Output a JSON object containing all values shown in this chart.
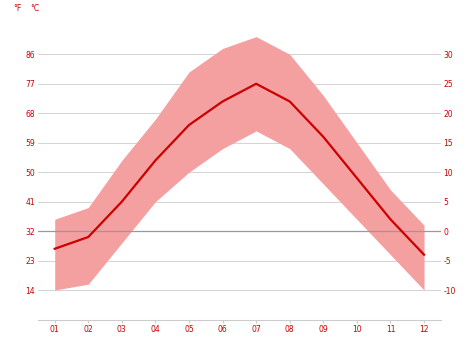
{
  "months": [
    1,
    2,
    3,
    4,
    5,
    6,
    7,
    8,
    9,
    10,
    11,
    12
  ],
  "month_labels": [
    "01",
    "02",
    "03",
    "04",
    "05",
    "06",
    "07",
    "08",
    "09",
    "10",
    "11",
    "12"
  ],
  "avg_temp": [
    -3,
    -1,
    5,
    12,
    18,
    22,
    25,
    22,
    16,
    9,
    2,
    -4
  ],
  "max_temp": [
    2,
    4,
    12,
    19,
    27,
    31,
    33,
    30,
    23,
    15,
    7,
    1
  ],
  "min_temp": [
    -10,
    -9,
    -2,
    5,
    10,
    14,
    17,
    14,
    8,
    2,
    -4,
    -10
  ],
  "line_color": "#cc0000",
  "band_color": "#f5a0a0",
  "zero_line_color": "#999999",
  "bg_color": "#ffffff",
  "grid_color": "#cccccc",
  "ylim_min": -15,
  "ylim_max": 35,
  "yticks_c": [
    30,
    25,
    20,
    15,
    10,
    5,
    0,
    -5,
    -10
  ],
  "yticks_f": [
    86,
    77,
    68,
    59,
    50,
    41,
    32,
    23,
    14
  ],
  "ylabel_f": "°F",
  "ylabel_c": "°C",
  "tick_color": "#cc0000",
  "tick_fontsize": 5.5,
  "unit_fontsize": 5.5,
  "line_width": 1.6,
  "xlim_min": 0.5,
  "xlim_max": 12.5
}
